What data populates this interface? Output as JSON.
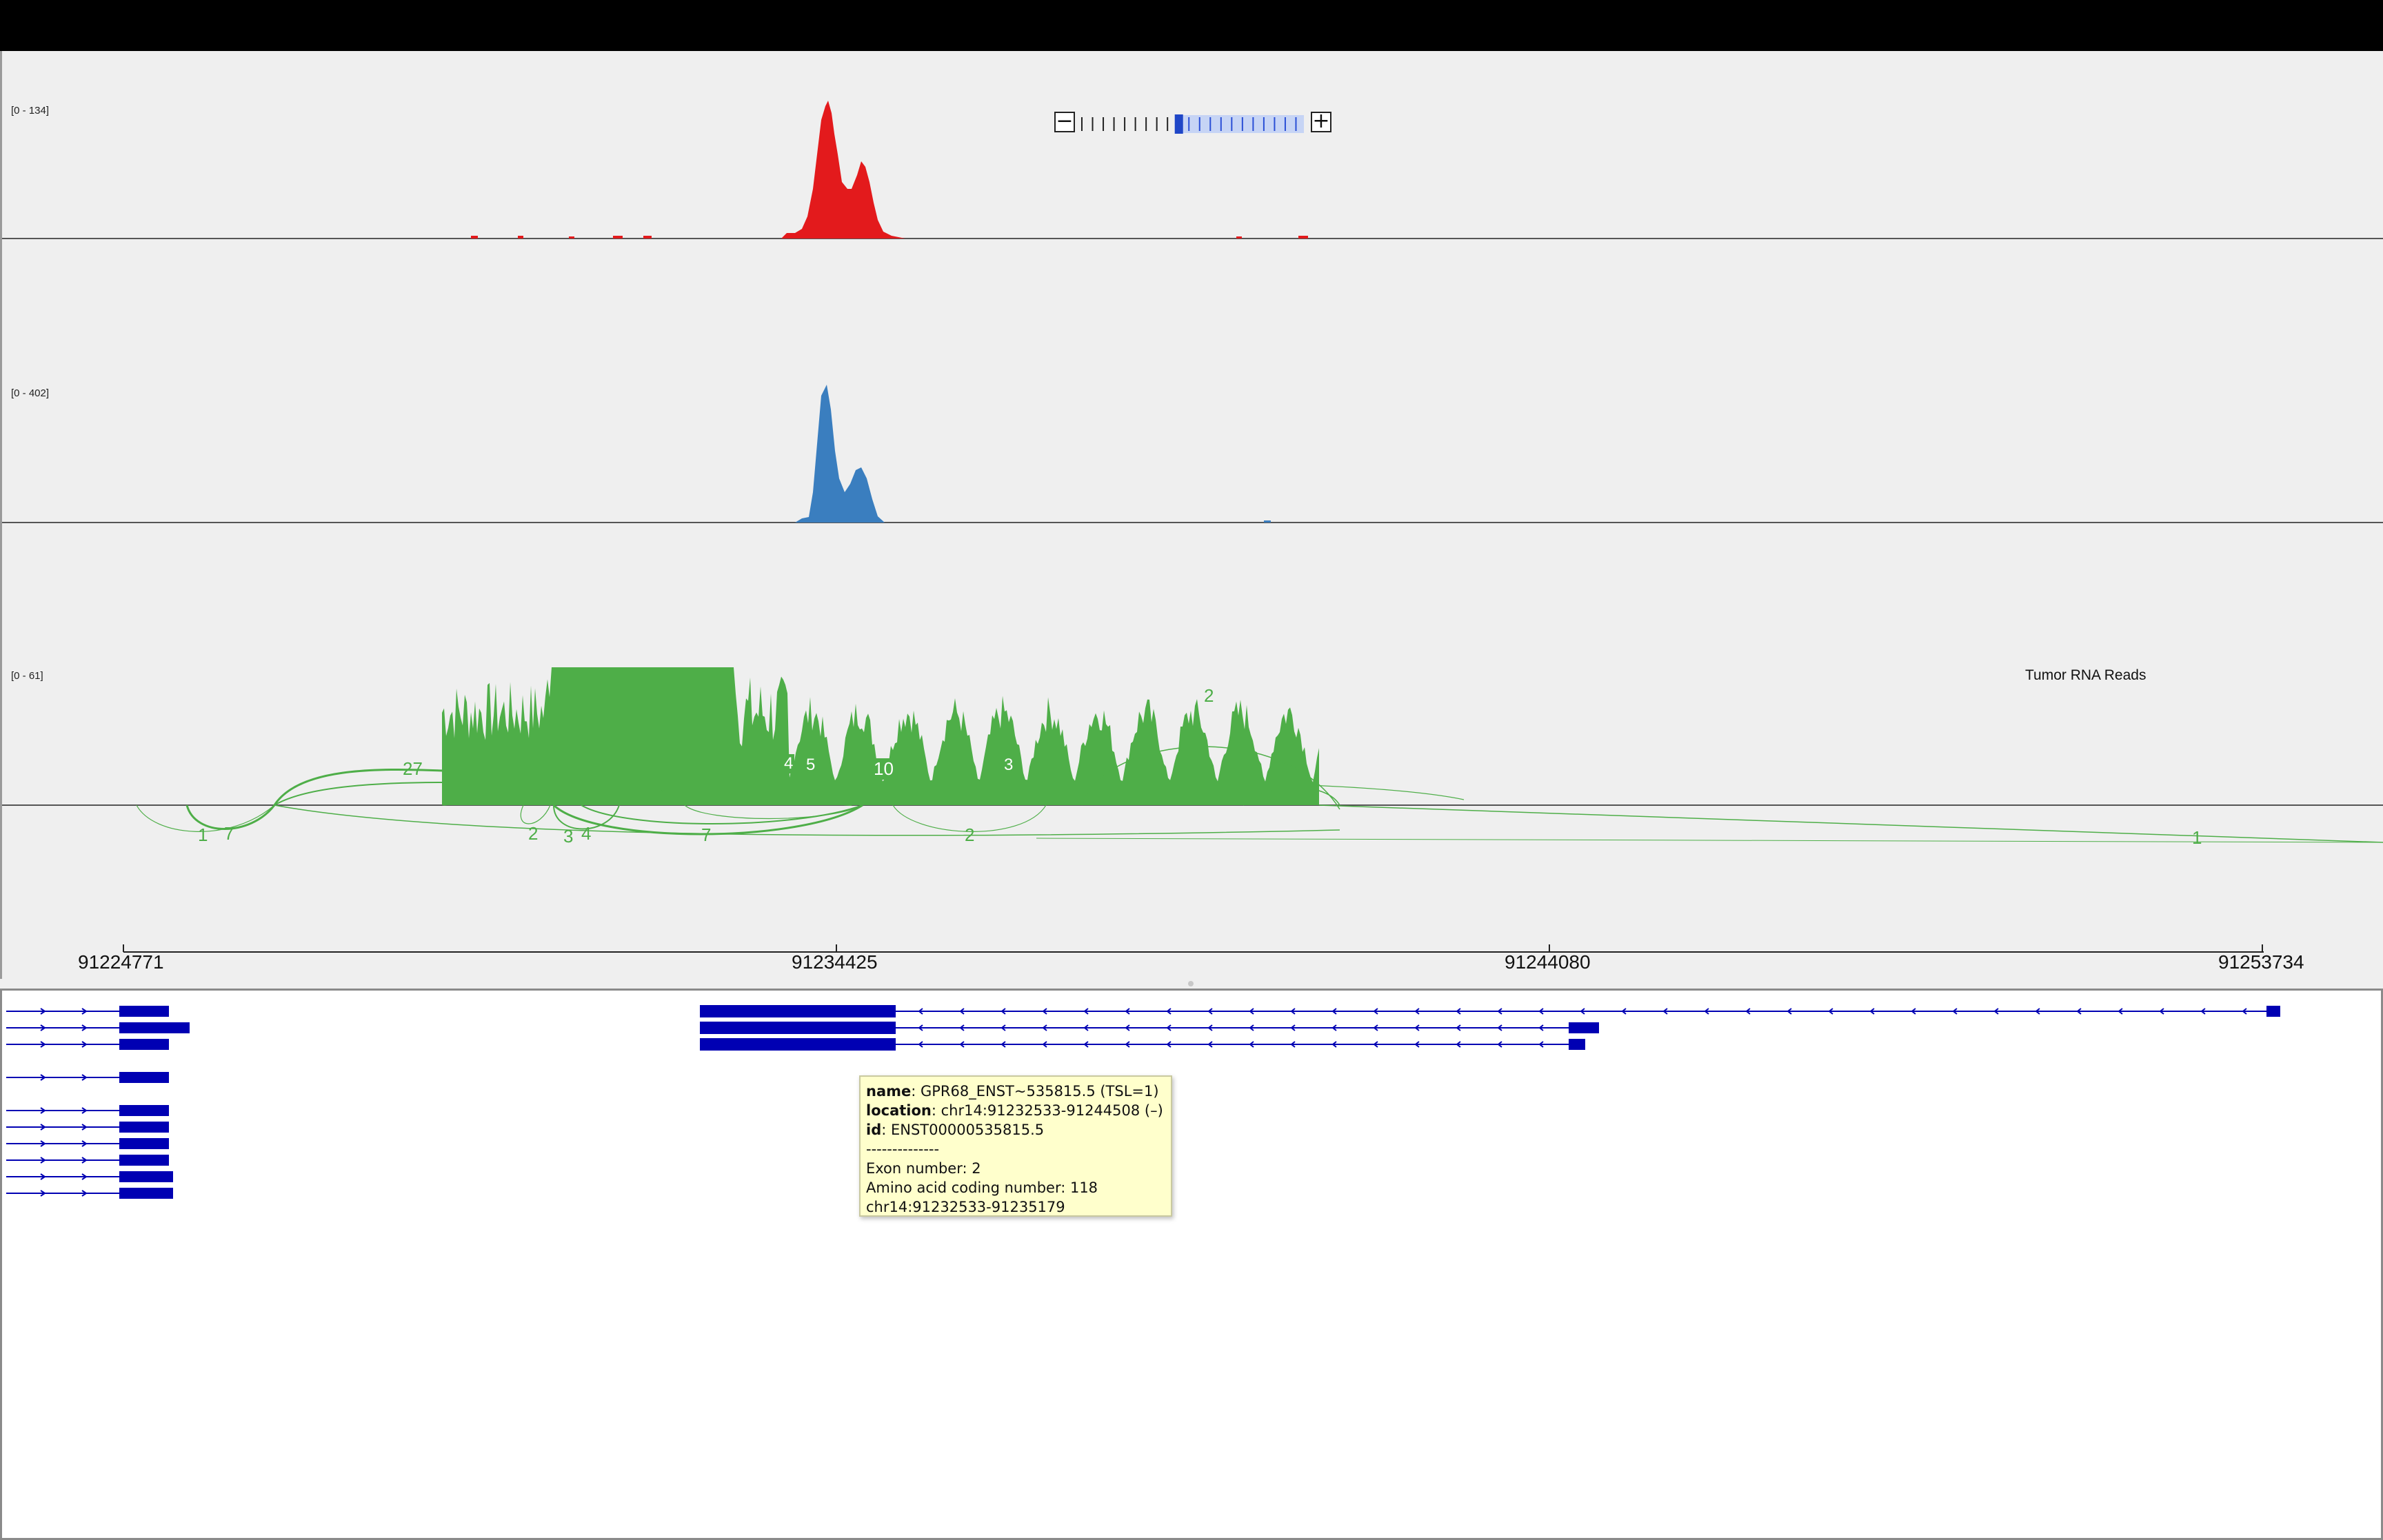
{
  "zoom": {
    "minus_label": "−",
    "plus_label": "+",
    "level_index": 9,
    "level_count": 21
  },
  "tracks": [
    {
      "id": "track1",
      "range_label": "[0 - 134]",
      "color": "#e31a1c",
      "name": ""
    },
    {
      "id": "track2",
      "range_label": "[0 - 402]",
      "color": "#3a7ebf",
      "name": ""
    },
    {
      "id": "track3",
      "range_label": "[0 - 61]",
      "color": "#4eae48",
      "name": "Tumor RNA Reads"
    }
  ],
  "junction_labels": {
    "above": [
      "27",
      "4",
      "5",
      "10",
      "3",
      "2"
    ],
    "below": [
      "1",
      "7",
      "2",
      "3",
      "4",
      "7",
      "2",
      "1"
    ]
  },
  "ruler": {
    "ticks": [
      "91224771",
      "91234425",
      "91244080",
      "91253734"
    ]
  },
  "genes": {
    "color": "#0000b3"
  },
  "tooltip": {
    "name_key": "name",
    "name_value": ": GPR68_ENST~535815.5 (TSL=1)",
    "location_key": "location",
    "location_value": ": chr14:91232533-91244508 (–)",
    "id_key": "id",
    "id_value": ": ENST00000535815.5",
    "separator": "--------------",
    "exon": "Exon number: 2",
    "amino": "Amino acid coding number: 118",
    "coords": "chr14:91232533-91235179"
  }
}
